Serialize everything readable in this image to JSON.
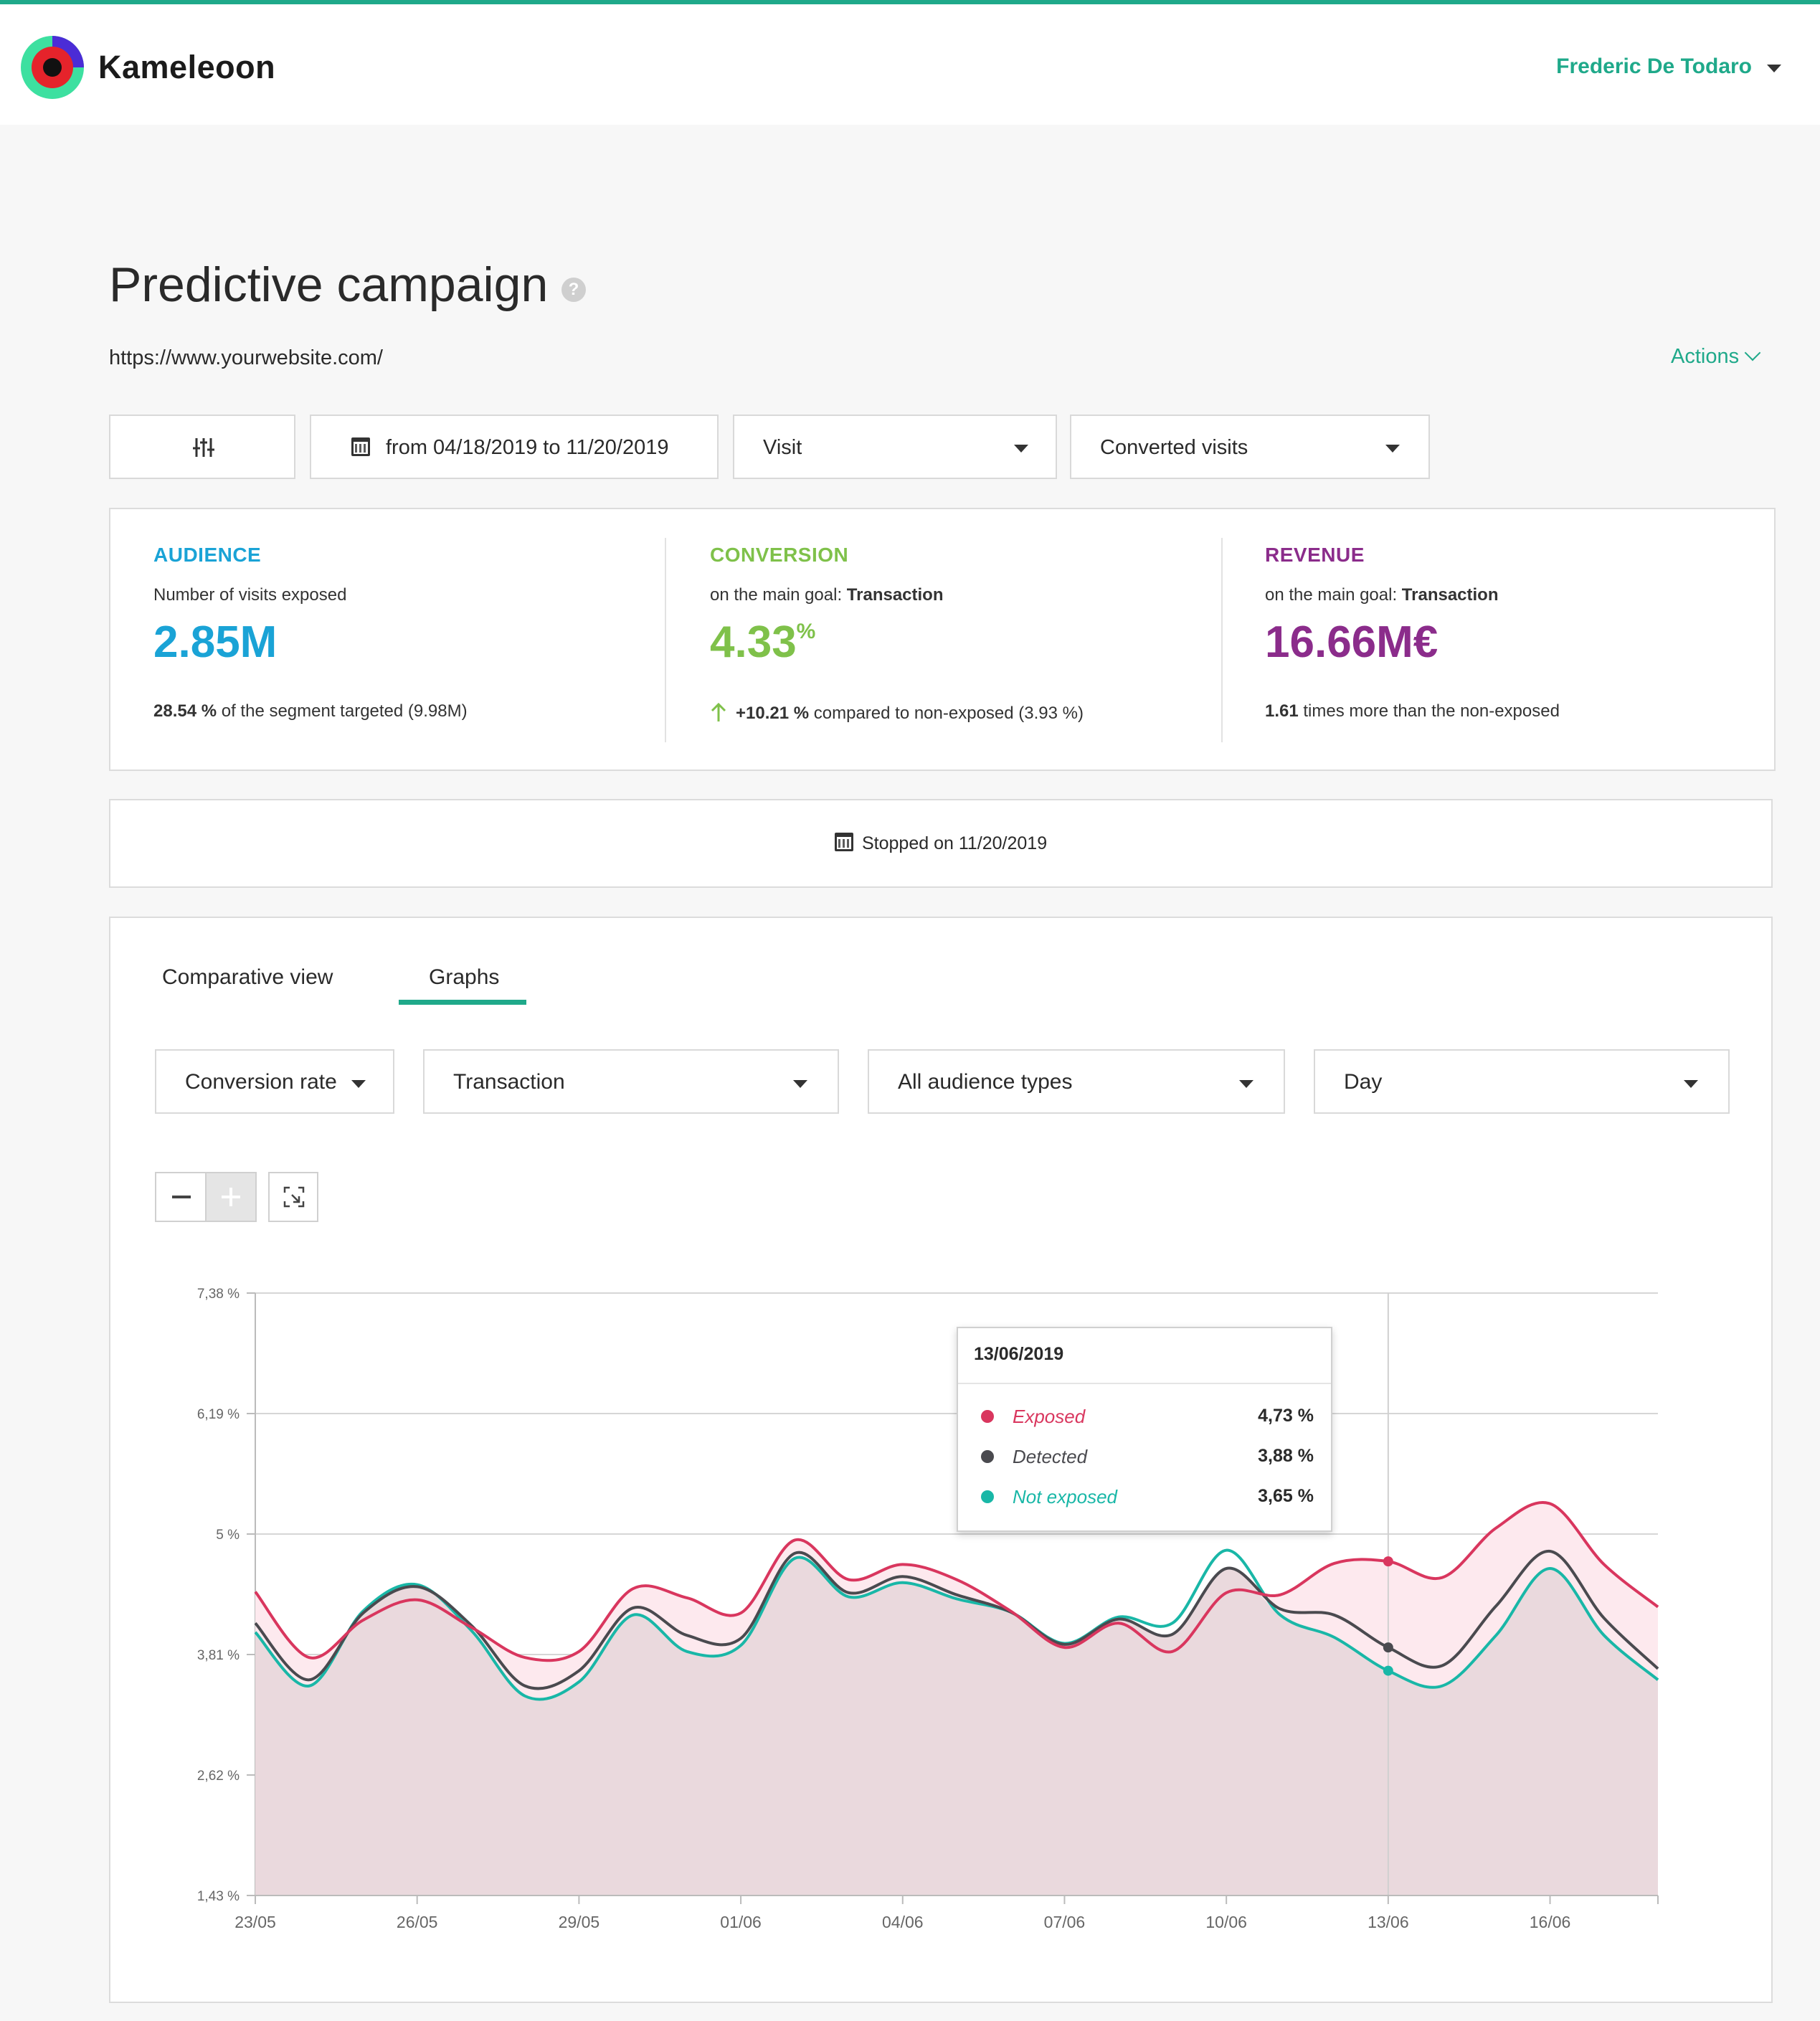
{
  "app": {
    "name": "Kameleoon",
    "user": "Frederic De Todaro"
  },
  "page": {
    "title": "Predictive campaign",
    "url": "https://www.yourwebsite.com/",
    "actions_label": "Actions"
  },
  "filters": {
    "date_range": "from 04/18/2019 to 11/20/2019",
    "scope": "Visit",
    "metric": "Converted visits"
  },
  "kpis": {
    "audience": {
      "title": "AUDIENCE",
      "subtitle": "Number of visits exposed",
      "value": "2.85M",
      "foot_bold": "28.54 %",
      "foot_text": " of the segment targeted (9.98M)",
      "color": "#1aa3d6"
    },
    "conversion": {
      "title": "CONVERSION",
      "subtitle_prefix": "on the main goal: ",
      "subtitle_bold": "Transaction",
      "value": "4.33",
      "value_unit": "%",
      "foot_bold": "+10.21 %",
      "foot_text": " compared to non-exposed (3.93 %)",
      "color": "#7fc14a"
    },
    "revenue": {
      "title": "REVENUE",
      "subtitle_prefix": "on the main goal: ",
      "subtitle_bold": "Transaction",
      "value": "16.66M€",
      "foot_bold": "1.61",
      "foot_text": " times more than the non-exposed",
      "color": "#8b2c8b"
    }
  },
  "status": {
    "text": "Stopped on 11/20/2019"
  },
  "tabs": [
    {
      "label": "Comparative view",
      "active": false
    },
    {
      "label": "Graphs",
      "active": true
    }
  ],
  "graph_filters": {
    "measure": "Conversion rate",
    "goal": "Transaction",
    "audience": "All audience types",
    "granularity": "Day"
  },
  "tooltip": {
    "date": "13/06/2019",
    "rows": [
      {
        "name": "Exposed",
        "value": "4,73 %",
        "color": "#d9365e"
      },
      {
        "name": "Detected",
        "value": "3,88 %",
        "color": "#4a4a4f"
      },
      {
        "name": "Not exposed",
        "value": "3,65 %",
        "color": "#19b7a7"
      }
    ]
  },
  "colors": {
    "accent": "#1fa98a",
    "exposed": "#d9365e",
    "detected": "#4a4a4f",
    "not_exposed": "#19b7a7",
    "area_fill": "#ead9dd",
    "area_fill_light": "#fde9ee"
  },
  "chart_data": {
    "type": "area",
    "x": [
      "23/05",
      "24/05",
      "25/05",
      "26/05",
      "27/05",
      "28/05",
      "29/05",
      "30/05",
      "31/05",
      "01/06",
      "02/06",
      "03/06",
      "04/06",
      "05/06",
      "06/06",
      "07/06",
      "08/06",
      "09/06",
      "10/06",
      "11/06",
      "12/06",
      "13/06",
      "14/06",
      "15/06",
      "16/06",
      "17/06",
      "18/06"
    ],
    "tick_labels": [
      "23/05",
      "26/05",
      "29/05",
      "01/06",
      "04/06",
      "07/06",
      "10/06",
      "13/06",
      "16/06"
    ],
    "y_tick_labels": [
      "1,43 %",
      "2,62 %",
      "3,81 %",
      "5 %",
      "6,19 %",
      "7,38 %"
    ],
    "ylim": [
      1.43,
      7.38
    ],
    "grid": true,
    "highlight_x": "13/06",
    "series": [
      {
        "name": "Exposed",
        "values": [
          4.43,
          3.78,
          4.15,
          4.35,
          4.08,
          3.78,
          3.84,
          4.46,
          4.37,
          4.22,
          4.94,
          4.55,
          4.7,
          4.55,
          4.24,
          3.88,
          4.12,
          3.84,
          4.42,
          4.4,
          4.71,
          4.73,
          4.57,
          5.06,
          5.3,
          4.7,
          4.28
        ]
      },
      {
        "name": "Detected",
        "values": [
          4.12,
          3.56,
          4.22,
          4.48,
          4.1,
          3.5,
          3.65,
          4.27,
          4.0,
          3.97,
          4.81,
          4.42,
          4.58,
          4.4,
          4.23,
          3.91,
          4.16,
          4.01,
          4.66,
          4.26,
          4.2,
          3.88,
          3.7,
          4.29,
          4.83,
          4.17,
          3.67
        ]
      },
      {
        "name": "Not exposed",
        "values": [
          4.03,
          3.5,
          4.24,
          4.5,
          4.05,
          3.4,
          3.54,
          4.2,
          3.84,
          3.9,
          4.76,
          4.38,
          4.52,
          4.36,
          4.23,
          3.92,
          4.18,
          4.12,
          4.84,
          4.2,
          3.98,
          3.65,
          3.5,
          4.0,
          4.66,
          4.0,
          3.56
        ]
      }
    ]
  }
}
